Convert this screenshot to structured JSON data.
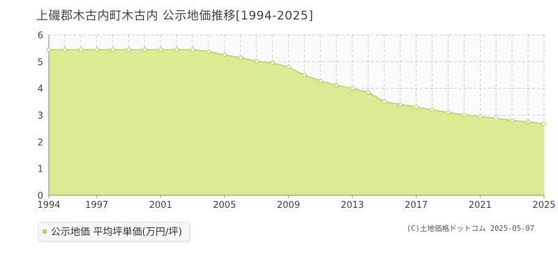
{
  "title": "上磯郡木古内町木古内 公示地価推移[1994-2025]",
  "legend": {
    "label": "公示地価 平均坪単価(万円/坪)"
  },
  "copyright": "(C)土地価格ドットコム 2025-05-07",
  "colors": {
    "fill": "#d9ec93",
    "line": "#b6d65a",
    "marker_fill": "#ffffff",
    "grid": "#cccccc"
  },
  "chart_data": {
    "type": "area",
    "x": [
      1994,
      1995,
      1996,
      1997,
      1998,
      1999,
      2000,
      2001,
      2002,
      2003,
      2004,
      2005,
      2006,
      2007,
      2008,
      2009,
      2010,
      2011,
      2012,
      2013,
      2014,
      2015,
      2016,
      2017,
      2018,
      2019,
      2020,
      2021,
      2022,
      2023,
      2024,
      2025
    ],
    "series": [
      {
        "values": [
          5.45,
          5.45,
          5.45,
          5.45,
          5.45,
          5.45,
          5.45,
          5.45,
          5.45,
          5.45,
          5.38,
          5.25,
          5.15,
          5.02,
          4.95,
          4.8,
          4.5,
          4.28,
          4.12,
          4.0,
          3.85,
          3.5,
          3.4,
          3.3,
          3.2,
          3.1,
          3.0,
          2.95,
          2.88,
          2.8,
          2.75,
          2.67
        ]
      }
    ],
    "x_ticks": [
      "1994",
      "1997",
      "2001",
      "2005",
      "2009",
      "2013",
      "2017",
      "2021",
      "2025"
    ],
    "y_ticks": [
      "0",
      "1",
      "2",
      "3",
      "4",
      "5",
      "6"
    ],
    "xlim": [
      1994,
      2025
    ],
    "ylim": [
      0,
      6
    ],
    "grid": true
  }
}
